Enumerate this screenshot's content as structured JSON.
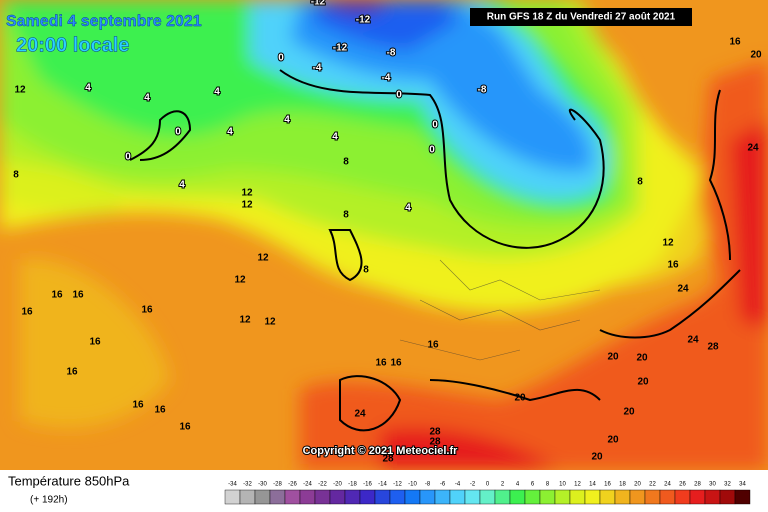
{
  "header": {
    "date": "Samedi 4 septembre 2021",
    "time": "20:00 locale",
    "run": "Run GFS 18 Z du Vendredi 27 août 2021"
  },
  "copyright": "Copyright © 2021 Meteociel.fr",
  "footer": {
    "title": "Température 850hPa",
    "lead": "(+ 192h)"
  },
  "legend": {
    "values": [
      -34,
      -32,
      -30,
      -28,
      -26,
      -24,
      -22,
      -20,
      -18,
      -16,
      -14,
      -12,
      -10,
      -8,
      -6,
      -4,
      -2,
      0,
      2,
      4,
      6,
      8,
      10,
      12,
      14,
      16,
      18,
      20,
      22,
      24,
      26,
      28,
      30,
      32,
      34
    ],
    "colors": [
      "#d2d2d2",
      "#b4b4b4",
      "#969696",
      "#8c6e9a",
      "#a050a0",
      "#8c3c96",
      "#783296",
      "#6428a0",
      "#5028b4",
      "#3c28c8",
      "#2846dc",
      "#1e5ff0",
      "#1478f5",
      "#2896fa",
      "#3cb4fa",
      "#50d2fa",
      "#64e6f0",
      "#64f0c8",
      "#50f08c",
      "#3cf050",
      "#64f03c",
      "#8cf032",
      "#b4f028",
      "#dcf01e",
      "#f0f01e",
      "#f0d21e",
      "#f0b41e",
      "#f0961e",
      "#f0781e",
      "#f05a1e",
      "#f03c1e",
      "#e61e1e",
      "#c81414",
      "#a00a0a",
      "#500000"
    ]
  },
  "map_labels": [
    "-12",
    "-12",
    "-12",
    "-8",
    "-8",
    "-4",
    "-4",
    "0",
    "0",
    "0",
    "0",
    "4",
    "4",
    "4",
    "4",
    "4",
    "4",
    "4",
    "4",
    "8",
    "8",
    "8",
    "8",
    "12",
    "12",
    "12",
    "12",
    "12",
    "12",
    "12",
    "16",
    "16",
    "16",
    "16",
    "16",
    "16",
    "16",
    "16",
    "16",
    "16",
    "16",
    "16",
    "16",
    "20",
    "20",
    "20",
    "20",
    "20",
    "20",
    "20",
    "24",
    "24",
    "24",
    "24",
    "28",
    "28",
    "28",
    "28",
    "0",
    "0",
    "12",
    "8",
    "16",
    "20"
  ]
}
